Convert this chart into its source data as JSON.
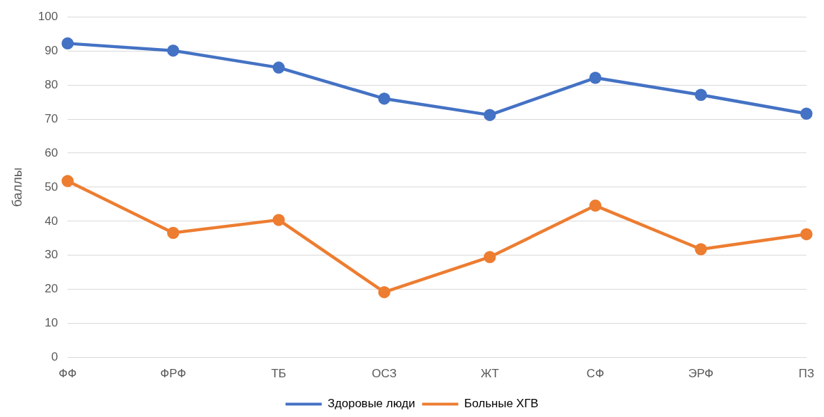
{
  "chart_data": {
    "type": "line",
    "ylabel": "баллы",
    "categories": [
      "ФФ",
      "ФРФ",
      "ТБ",
      "ОСЗ",
      "ЖТ",
      "СФ",
      "ЭРФ",
      "ПЗ"
    ],
    "series": [
      {
        "name": "Здоровые люди",
        "color": "#4472c4",
        "values": [
          92.2,
          90.1,
          85.1,
          76.0,
          71.2,
          82.1,
          77.1,
          71.6
        ]
      },
      {
        "name": "Больные ХГВ",
        "color": "#ed7d31",
        "values": [
          51.8,
          36.6,
          40.4,
          19.2,
          29.5,
          44.6,
          31.8,
          36.2
        ]
      }
    ],
    "ylim": [
      0,
      100
    ],
    "yticks": [
      0,
      10,
      20,
      30,
      40,
      50,
      60,
      70,
      80,
      90,
      100
    ],
    "grid": "y",
    "legend": "bottom",
    "marker": "circle",
    "line_style": "solid"
  }
}
